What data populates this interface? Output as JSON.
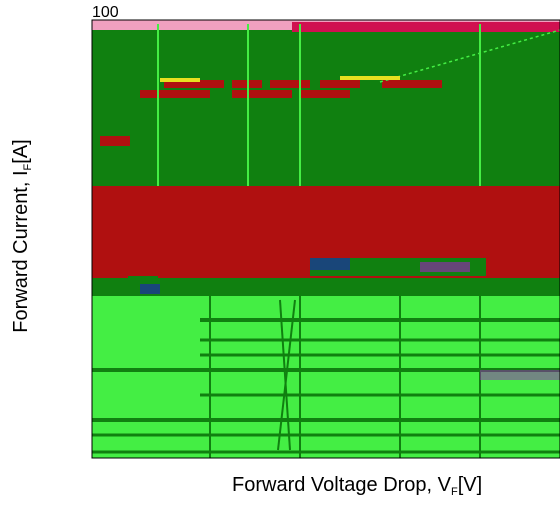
{
  "chart_data": {
    "type": "line",
    "title": "",
    "xlabel_main": "Forward Voltage Drop, V",
    "xlabel_sub": "F",
    "xlabel_unit": "[V]",
    "ylabel_main": "Forward Current, I",
    "ylabel_sub": "F",
    "ylabel_unit": "[A]",
    "yticks_visible": [
      "100"
    ],
    "yscale": "log",
    "grid": true,
    "colors": {
      "band_dark_green": "#108010",
      "band_red": "#b01010",
      "band_light_green": "#44ee44",
      "artifact_blue": "#2020c0",
      "artifact_purple": "#a020c0",
      "artifact_yellow": "#e8e020"
    },
    "series": []
  }
}
